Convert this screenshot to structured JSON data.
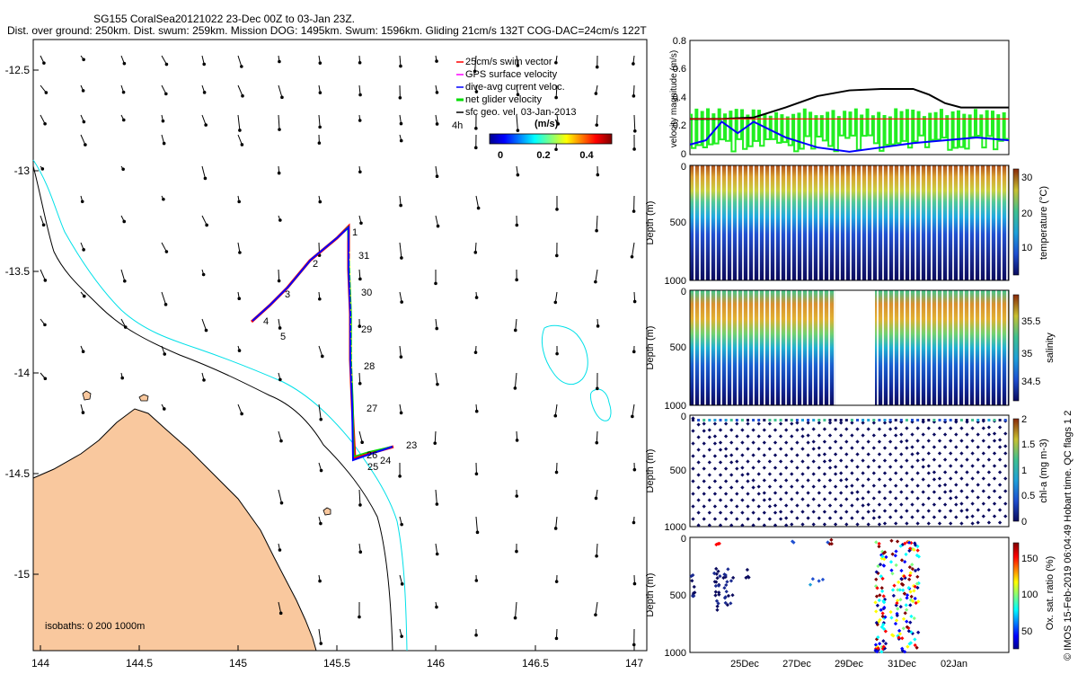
{
  "header": {
    "line1": "SG155 CoralSea20121022 23-Dec 00Z to 03-Jan 23Z.",
    "line2": "Dist. over ground: 250km. Dist. swum: 259km. Mission DOG: 1495km. Swum: 1596km. Gliding 21cm/s 132T COG-DAC=24cm/s 122T"
  },
  "colors": {
    "land": "#f9c89e",
    "isobath_200": "#000000",
    "isobath_1000": "#00e0e8",
    "track": "#0000ff",
    "swim": "#ff0000",
    "gps": "#ff00ff",
    "net": "#00dd00"
  },
  "map": {
    "xticks": [
      "144",
      "144.5",
      "145",
      "145.5",
      "146",
      "146.5",
      "147"
    ],
    "yticks": [
      "-12.5",
      "-13",
      "-13.5",
      "-14",
      "-14.5",
      "-15"
    ],
    "isobaths_label": "isobaths: 0   200  1000m",
    "legend": [
      {
        "label": "25cm/s swim vector",
        "color": "#ff0000"
      },
      {
        "label": "GPS surface velocity",
        "color": "#ff00ff"
      },
      {
        "label": "dive-avg current veloc.",
        "color": "#0000ff"
      },
      {
        "label": "net glider velocity",
        "color": "#00dd00"
      },
      {
        "label": "sfc geo. vel. 03-Jan-2013",
        "color": "#000000"
      }
    ],
    "colorbar": {
      "title": "(m/s)",
      "ticks": [
        "0",
        "0.2",
        "0.4"
      ],
      "side_label": "4h"
    },
    "track_labels": [
      "1",
      "2",
      "3",
      "4",
      "5",
      "23",
      "24",
      "25",
      "26",
      "27",
      "28",
      "29",
      "30",
      "31"
    ]
  },
  "chart_data": [
    {
      "type": "line",
      "title": "",
      "ylabel": "velocity magnitude (m/s)",
      "ylim": [
        0,
        0.8
      ],
      "yticks": [
        "0",
        "0.2",
        "0.4",
        "0.6",
        "0.8"
      ],
      "series": [
        {
          "name": "geostrophic speed",
          "color": "#000000",
          "x": [
            0,
            0.1,
            0.2,
            0.3,
            0.4,
            0.5,
            0.6,
            0.7,
            0.75,
            0.8,
            0.85,
            1.0
          ],
          "values": [
            0.25,
            0.25,
            0.26,
            0.33,
            0.41,
            0.45,
            0.46,
            0.46,
            0.42,
            0.36,
            0.33,
            0.33
          ]
        },
        {
          "name": "swim speed",
          "color": "#ff0000",
          "x": [
            0,
            1
          ],
          "values": [
            0.25,
            0.25
          ]
        },
        {
          "name": "dive-avg current",
          "color": "#0000ff",
          "x": [
            0,
            0.05,
            0.1,
            0.15,
            0.2,
            0.3,
            0.4,
            0.5,
            0.6,
            0.7,
            0.8,
            0.9,
            1.0
          ],
          "values": [
            0.07,
            0.1,
            0.23,
            0.15,
            0.23,
            0.12,
            0.05,
            0.02,
            0.05,
            0.08,
            0.1,
            0.12,
            0.1
          ]
        }
      ]
    },
    {
      "type": "heatmap",
      "ylabel": "Depth (m)",
      "colorbar_label": "temperature (°C)",
      "yticks": [
        "0",
        "500",
        "1000"
      ],
      "colorbar_ticks": [
        "10",
        "20",
        "30"
      ]
    },
    {
      "type": "heatmap",
      "ylabel": "Depth (m)",
      "colorbar_label": "salinity",
      "yticks": [
        "0",
        "500",
        "1000"
      ],
      "colorbar_ticks": [
        "34.5",
        "35",
        "35.5"
      ]
    },
    {
      "type": "scatter",
      "ylabel": "Depth (m)",
      "colorbar_label": "chl-a (mg m-3)",
      "yticks": [
        "0",
        "500",
        "1000"
      ],
      "colorbar_ticks": [
        "0",
        "0.5",
        "1",
        "1.5",
        "2"
      ]
    },
    {
      "type": "scatter",
      "ylabel": "Depth (m)",
      "colorbar_label": "Ox. sat. ratio (%)",
      "yticks": [
        "0",
        "500",
        "1000"
      ],
      "colorbar_ticks": [
        "50",
        "100",
        "150"
      ],
      "xticks": [
        "25Dec",
        "27Dec",
        "29Dec",
        "31Dec",
        "02Jan"
      ]
    }
  ],
  "footer": {
    "credit": "© IMOS 15-Feb-2019 06:04:49 Hobart time. QC flags 1  2"
  }
}
